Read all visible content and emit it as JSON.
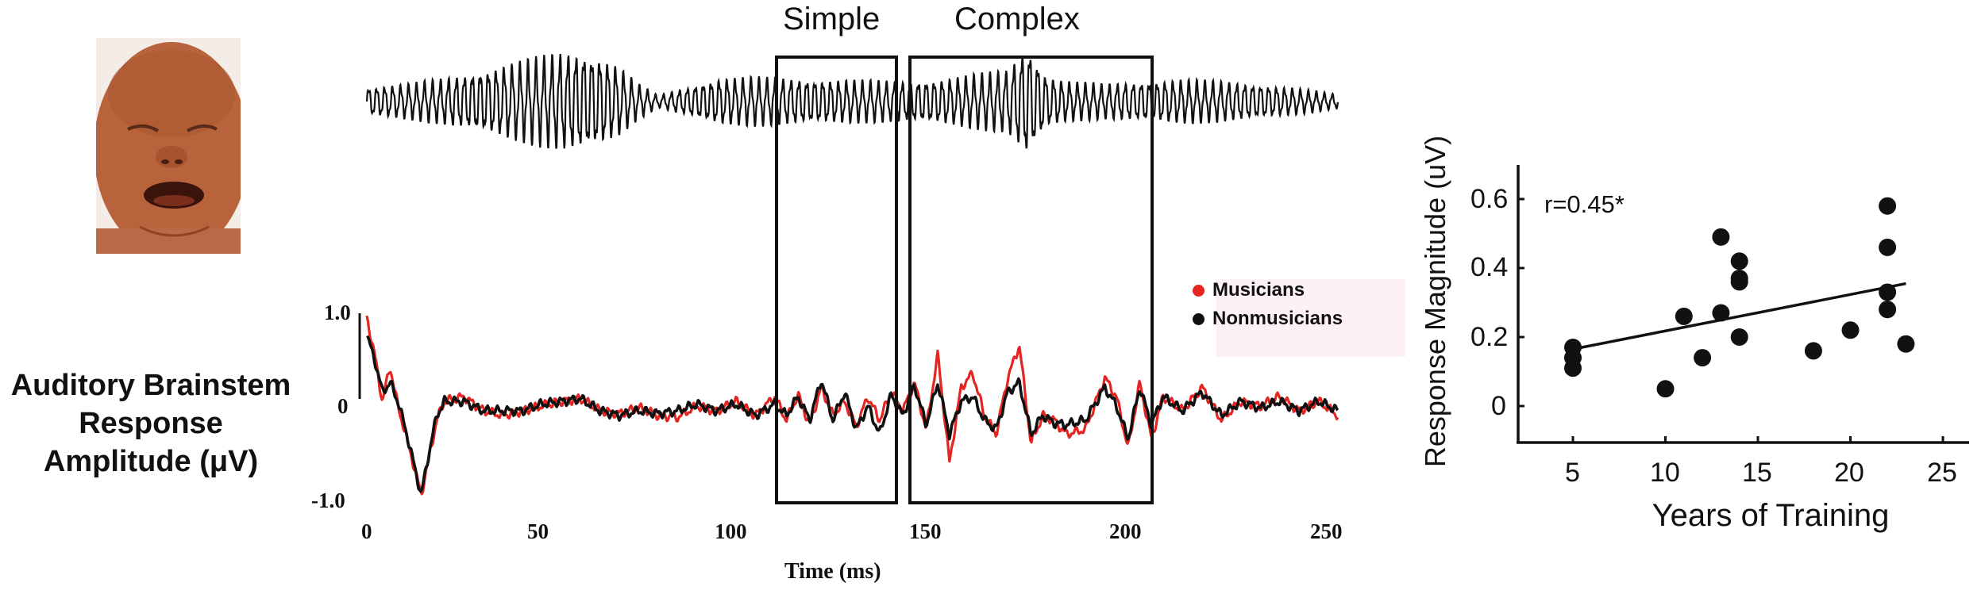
{
  "figure": {
    "photo": {
      "alt": "crying infant",
      "skin_color": "#b9673f"
    },
    "stimulus": {
      "region_labels": [
        "Simple",
        "Complex"
      ]
    },
    "abr": {
      "ylabel_lines": [
        "Auditory Brainstem",
        "Response",
        "Amplitude (μV)"
      ],
      "ylabel_line1": "Auditory Brainstem",
      "ylabel_line2": "Response",
      "ylabel_line3": "Amplitude (μV)",
      "xlabel": "Time (ms)",
      "yticks": [
        "1.0",
        "0",
        "-1.0"
      ],
      "xticks": [
        "0",
        "50",
        "100",
        "150",
        "200",
        "250"
      ],
      "legend": [
        {
          "label": "Musicians",
          "color": "#e52521"
        },
        {
          "label": "Nonmusicians",
          "color": "#111111"
        }
      ]
    },
    "scatter": {
      "ylabel": "Response Magnitude (uV)",
      "xlabel": "Years of Training",
      "annotation": "r=0.45*",
      "yticks": [
        "0.6",
        "0.4",
        "0.2",
        "0"
      ],
      "xticks": [
        "5",
        "10",
        "15",
        "20",
        "25"
      ]
    }
  },
  "chart_data": [
    {
      "type": "line",
      "title": "Stimulus waveform (infant cry) with Simple and Complex regions",
      "xlabel": "Time (ms)",
      "ylabel": "",
      "xlim": [
        0,
        250
      ],
      "regions": [
        {
          "label": "Simple",
          "x_start": 106,
          "x_end": 137
        },
        {
          "label": "Complex",
          "x_start": 141,
          "x_end": 199
        }
      ],
      "envelope": {
        "x": [
          0,
          10,
          20,
          30,
          40,
          50,
          55,
          60,
          65,
          70,
          75,
          80,
          90,
          100,
          110,
          120,
          130,
          140,
          150,
          160,
          165,
          170,
          175,
          180,
          190,
          200,
          210,
          220,
          230,
          240,
          250
        ],
        "amplitude": [
          0.25,
          0.3,
          0.4,
          0.55,
          0.7,
          0.85,
          0.88,
          0.8,
          0.6,
          0.3,
          0.1,
          0.2,
          0.4,
          0.42,
          0.4,
          0.38,
          0.36,
          0.35,
          0.4,
          0.5,
          0.55,
          1.0,
          0.45,
          0.35,
          0.3,
          0.35,
          0.38,
          0.35,
          0.3,
          0.22,
          0.12
        ]
      }
    },
    {
      "type": "line",
      "title": "Auditory Brainstem Response",
      "xlabel": "Time (ms)",
      "ylabel": "Auditory Brainstem Response Amplitude (μV)",
      "xlim": [
        0,
        250
      ],
      "ylim": [
        -1.0,
        1.0
      ],
      "legend_position": "upper right",
      "x": [
        0,
        2,
        4,
        6,
        8,
        10,
        12,
        14,
        16,
        18,
        20,
        25,
        30,
        35,
        40,
        45,
        50,
        55,
        60,
        65,
        70,
        75,
        80,
        85,
        90,
        95,
        100,
        105,
        108,
        111,
        114,
        117,
        120,
        123,
        126,
        129,
        132,
        135,
        138,
        141,
        144,
        147,
        150,
        153,
        156,
        159,
        162,
        165,
        168,
        171,
        174,
        177,
        180,
        185,
        190,
        193,
        196,
        199,
        202,
        205,
        210,
        215,
        220,
        225,
        230,
        235,
        240,
        245,
        250
      ],
      "series": [
        {
          "name": "Musicians",
          "color": "#e52521",
          "values": [
            0.95,
            0.55,
            0.05,
            0.42,
            0.0,
            -0.3,
            -0.62,
            -0.95,
            -0.55,
            -0.15,
            0.05,
            0.1,
            -0.05,
            -0.1,
            -0.05,
            0.0,
            0.05,
            0.08,
            -0.05,
            -0.08,
            -0.02,
            -0.1,
            -0.12,
            0.0,
            -0.05,
            0.05,
            -0.1,
            0.1,
            -0.15,
            0.12,
            -0.2,
            0.2,
            -0.1,
            0.05,
            -0.22,
            0.1,
            -0.15,
            0.15,
            -0.05,
            0.25,
            -0.25,
            0.55,
            -0.6,
            0.2,
            0.35,
            -0.1,
            -0.3,
            0.3,
            0.65,
            -0.4,
            -0.1,
            -0.15,
            -0.3,
            -0.25,
            0.3,
            0.1,
            -0.45,
            0.25,
            -0.35,
            0.1,
            -0.05,
            0.2,
            -0.15,
            0.05,
            0.0,
            0.1,
            -0.05,
            0.05,
            -0.1
          ]
        },
        {
          "name": "Nonmusicians",
          "color": "#111111",
          "values": [
            0.75,
            0.5,
            0.15,
            0.25,
            0.05,
            -0.25,
            -0.6,
            -0.95,
            -0.5,
            -0.1,
            0.05,
            0.05,
            -0.05,
            -0.05,
            -0.05,
            0.02,
            0.05,
            0.08,
            -0.05,
            -0.1,
            -0.05,
            -0.08,
            -0.05,
            0.02,
            -0.05,
            0.02,
            -0.1,
            0.02,
            -0.1,
            0.1,
            -0.15,
            0.28,
            -0.15,
            0.15,
            -0.25,
            0.0,
            -0.3,
            0.12,
            -0.1,
            0.22,
            -0.2,
            0.25,
            -0.3,
            0.05,
            0.1,
            -0.15,
            -0.25,
            0.15,
            0.25,
            -0.3,
            -0.1,
            -0.18,
            -0.2,
            -0.15,
            0.2,
            0.0,
            -0.35,
            0.2,
            -0.2,
            0.1,
            -0.05,
            0.15,
            -0.1,
            0.05,
            -0.02,
            0.05,
            -0.05,
            0.05,
            -0.05
          ]
        }
      ]
    },
    {
      "type": "scatter",
      "title": "",
      "xlabel": "Years of Training",
      "ylabel": "Response Magnitude (uV)",
      "xlim": [
        2,
        27
      ],
      "ylim": [
        -0.1,
        0.7
      ],
      "xticks": [
        5,
        10,
        15,
        20,
        25
      ],
      "yticks": [
        0,
        0.2,
        0.4,
        0.6
      ],
      "annotation": "r=0.45*",
      "points": [
        {
          "x": 5,
          "y": 0.17
        },
        {
          "x": 5,
          "y": 0.14
        },
        {
          "x": 5,
          "y": 0.11
        },
        {
          "x": 10,
          "y": 0.05
        },
        {
          "x": 11,
          "y": 0.26
        },
        {
          "x": 12,
          "y": 0.14
        },
        {
          "x": 13,
          "y": 0.49
        },
        {
          "x": 13,
          "y": 0.27
        },
        {
          "x": 14,
          "y": 0.42
        },
        {
          "x": 14,
          "y": 0.37
        },
        {
          "x": 14,
          "y": 0.36
        },
        {
          "x": 14,
          "y": 0.2
        },
        {
          "x": 18,
          "y": 0.16
        },
        {
          "x": 20,
          "y": 0.22
        },
        {
          "x": 22,
          "y": 0.58
        },
        {
          "x": 22,
          "y": 0.46
        },
        {
          "x": 22,
          "y": 0.33
        },
        {
          "x": 22,
          "y": 0.28
        },
        {
          "x": 23,
          "y": 0.18
        }
      ],
      "regression_line": {
        "x": [
          5,
          23
        ],
        "y": [
          0.165,
          0.355
        ]
      },
      "grid": false
    }
  ]
}
